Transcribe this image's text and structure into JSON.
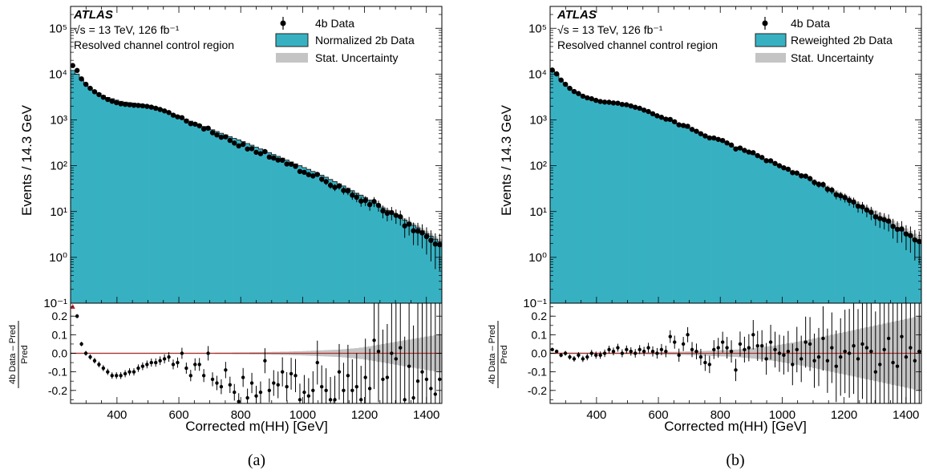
{
  "panels": [
    {
      "atlas_label": "ATLAS",
      "energy_label": "√s = 13 TeV, 126 fb⁻¹",
      "region_label": "Resolved channel control region",
      "legend": [
        {
          "marker": "point",
          "label": "4b Data"
        },
        {
          "marker": "fill",
          "label": "Normalized 2b Data"
        },
        {
          "marker": "band",
          "label": "Stat. Uncertainty"
        }
      ],
      "caption": "(a)"
    },
    {
      "atlas_label": "ATLAS",
      "energy_label": "√s = 13 TeV, 126 fb⁻¹",
      "region_label": "Resolved channel control region",
      "legend": [
        {
          "marker": "point",
          "label": "4b Data"
        },
        {
          "marker": "fill",
          "label": "Reweighted 2b Data"
        },
        {
          "marker": "band",
          "label": "Stat. Uncertainty"
        }
      ],
      "caption": "(b)"
    }
  ],
  "colors": {
    "prediction_fill": "#37b1c2",
    "prediction_edge": "#222222",
    "uncertainty": "#c4c4c4",
    "reference_line": "#b0302c",
    "offscale_marker": "#c1272d",
    "data": "#000000"
  },
  "chart_data": [
    {
      "type": "histogram",
      "title": "",
      "xlabel": "Corrected m(HH) [GeV]",
      "ylabel": "Events / 14.3 GeV",
      "ratio_ylabel": "4b Data – Pred / Pred",
      "xlim": [
        250,
        1450
      ],
      "ylim": [
        0.1,
        300000
      ],
      "yscale": "log",
      "ratio_ylim": [
        -0.27,
        0.27
      ],
      "x_ticks": [
        400,
        600,
        800,
        1000,
        1200,
        1400
      ],
      "y_ticks": [
        {
          "value": 0.1,
          "label": "10⁻¹"
        },
        {
          "value": 1,
          "label": "10⁰"
        },
        {
          "value": 10,
          "label": "10¹"
        },
        {
          "value": 100,
          "label": "10²"
        },
        {
          "value": 1000,
          "label": "10³"
        },
        {
          "value": 10000,
          "label": "10⁴"
        },
        {
          "value": 100000,
          "label": "10⁵"
        }
      ],
      "ratio_ticks": [
        -0.2,
        -0.1,
        0.0,
        0.1,
        0.2
      ],
      "bin_width_gev": 14.3,
      "prediction": [
        12000,
        10000,
        7500,
        6000,
        5000,
        4300,
        3800,
        3400,
        3100,
        2900,
        2700,
        2550,
        2450,
        2380,
        2320,
        2250,
        2180,
        2100,
        2000,
        1890,
        1760,
        1620,
        1480,
        1350,
        1230,
        1120,
        1030,
        940,
        860,
        790,
        720,
        660,
        610,
        560,
        510,
        470,
        430,
        395,
        365,
        335,
        305,
        280,
        255,
        232,
        212,
        193,
        175,
        160,
        146,
        133,
        121,
        110,
        100,
        91,
        83,
        75,
        68,
        62,
        56,
        50,
        45,
        40,
        36,
        32,
        28.5,
        25,
        22.5,
        20,
        17.5,
        15.5,
        13.5,
        12,
        10.5,
        9.5,
        8.5,
        7.5,
        6.5,
        5.7,
        5,
        4.4,
        3.8,
        3.3,
        2.9,
        2.5,
        2.2
      ],
      "ratio": [
        0.28,
        0.2,
        0.05,
        0.0,
        -0.02,
        -0.04,
        -0.06,
        -0.08,
        -0.1,
        -0.12,
        -0.12,
        -0.12,
        -0.11,
        -0.1,
        -0.1,
        -0.08,
        -0.07,
        -0.06,
        -0.05,
        -0.05,
        -0.04,
        -0.03,
        -0.02,
        -0.06,
        -0.05,
        0.0,
        -0.08,
        -0.12,
        -0.06,
        -0.06,
        -0.12,
        0.0,
        -0.14,
        -0.16,
        -0.18,
        -0.09,
        -0.17,
        -0.21,
        -0.26,
        -0.13,
        -0.24,
        -0.16,
        -0.23,
        -0.21,
        -0.04,
        -0.2,
        -0.16,
        -0.17,
        -0.1,
        -0.18,
        -0.11,
        -0.12,
        -0.25,
        -0.21,
        -0.23,
        -0.2,
        -0.05,
        -0.18,
        -0.2,
        -0.25,
        -0.25,
        -0.1,
        -0.2,
        -0.12,
        -0.2,
        -0.18,
        -0.25,
        -0.13,
        -0.19,
        0.07,
        0.01,
        -0.14,
        -0.13,
        0.0,
        -0.03,
        0.03,
        -0.25,
        -0.07,
        -0.24,
        -0.15,
        -0.1,
        -0.14,
        -0.19,
        -0.22,
        -0.14
      ],
      "uncertainty": [
        0.003,
        0.003,
        0.003,
        0.003,
        0.003,
        0.003,
        0.003,
        0.003,
        0.003,
        0.003,
        0.003,
        0.003,
        0.003,
        0.003,
        0.003,
        0.003,
        0.003,
        0.003,
        0.003,
        0.003,
        0.003,
        0.003,
        0.003,
        0.003,
        0.003,
        0.003,
        0.003,
        0.003,
        0.003,
        0.003,
        0.003,
        0.003,
        0.003,
        0.004,
        0.004,
        0.004,
        0.004,
        0.005,
        0.005,
        0.005,
        0.005,
        0.006,
        0.006,
        0.006,
        0.007,
        0.007,
        0.008,
        0.008,
        0.009,
        0.009,
        0.01,
        0.011,
        0.011,
        0.012,
        0.013,
        0.014,
        0.015,
        0.016,
        0.017,
        0.018,
        0.019,
        0.02,
        0.022,
        0.024,
        0.026,
        0.028,
        0.031,
        0.034,
        0.038,
        0.042,
        0.046,
        0.05,
        0.054,
        0.058,
        0.062,
        0.066,
        0.07,
        0.074,
        0.078,
        0.082,
        0.086,
        0.09,
        0.094,
        0.098,
        0.1
      ]
    },
    {
      "type": "histogram",
      "title": "",
      "xlabel": "Corrected m(HH) [GeV]",
      "ylabel": "Events / 14.3 GeV",
      "ratio_ylabel": "4b Data – Pred / Pred",
      "xlim": [
        250,
        1450
      ],
      "ylim": [
        0.1,
        300000
      ],
      "yscale": "log",
      "ratio_ylim": [
        -0.27,
        0.27
      ],
      "x_ticks": [
        400,
        600,
        800,
        1000,
        1200,
        1400
      ],
      "y_ticks": [
        {
          "value": 0.1,
          "label": "10⁻¹"
        },
        {
          "value": 1,
          "label": "10⁰"
        },
        {
          "value": 10,
          "label": "10¹"
        },
        {
          "value": 100,
          "label": "10²"
        },
        {
          "value": 1000,
          "label": "10³"
        },
        {
          "value": 10000,
          "label": "10⁴"
        },
        {
          "value": 100000,
          "label": "10⁵"
        }
      ],
      "ratio_ticks": [
        -0.2,
        -0.1,
        0.0,
        0.1,
        0.2
      ],
      "bin_width_gev": 14.3,
      "prediction": [
        12000,
        10000,
        7500,
        6000,
        5000,
        4300,
        3800,
        3400,
        3100,
        2900,
        2700,
        2550,
        2450,
        2380,
        2320,
        2250,
        2180,
        2100,
        2000,
        1890,
        1760,
        1620,
        1480,
        1350,
        1230,
        1120,
        1030,
        940,
        860,
        790,
        720,
        660,
        610,
        560,
        510,
        470,
        430,
        395,
        365,
        335,
        305,
        280,
        255,
        232,
        212,
        193,
        175,
        160,
        146,
        133,
        121,
        110,
        100,
        91,
        83,
        75,
        68,
        62,
        56,
        50,
        45,
        40,
        36,
        32,
        28.5,
        25,
        22.5,
        20,
        17.5,
        15.5,
        13.5,
        12,
        10.5,
        9.5,
        8.5,
        7.5,
        6.5,
        5.7,
        5,
        4.4,
        3.8,
        3.3,
        2.9,
        2.5,
        2.2
      ],
      "ratio": [
        0.02,
        0.01,
        -0.01,
        0.0,
        -0.02,
        -0.03,
        -0.01,
        -0.03,
        -0.02,
        0.0,
        -0.01,
        -0.01,
        0.0,
        0.02,
        0.01,
        0.03,
        0.0,
        0.02,
        0.01,
        0.0,
        0.02,
        0.01,
        0.03,
        0.01,
        0.0,
        0.02,
        0.01,
        0.09,
        0.06,
        -0.01,
        0.05,
        0.1,
        0.02,
        0.01,
        -0.02,
        -0.05,
        -0.06,
        0.02,
        0.03,
        0.06,
        0.03,
        0.01,
        -0.09,
        0.05,
        0.02,
        0.03,
        0.1,
        0.04,
        0.04,
        -0.03,
        0.06,
        0.02,
        0.0,
        -0.01,
        0.01,
        -0.06,
        0.02,
        -0.03,
        0.06,
        0.05,
        -0.04,
        -0.02,
        0.08,
        -0.04,
        0.03,
        -0.07,
        -0.02,
        0.01,
        0.0,
        0.04,
        -0.03,
        0.05,
        0.03,
        0.01,
        -0.1,
        -0.06,
        0.02,
        0.08,
        -0.05,
        -0.07,
        0.09,
        -0.02,
        0.03,
        -0.04,
        0.01
      ],
      "uncertainty": [
        0.004,
        0.004,
        0.004,
        0.004,
        0.004,
        0.004,
        0.004,
        0.004,
        0.004,
        0.004,
        0.004,
        0.004,
        0.004,
        0.004,
        0.004,
        0.004,
        0.004,
        0.005,
        0.005,
        0.005,
        0.005,
        0.005,
        0.006,
        0.006,
        0.006,
        0.007,
        0.007,
        0.008,
        0.008,
        0.009,
        0.009,
        0.01,
        0.011,
        0.011,
        0.012,
        0.013,
        0.014,
        0.015,
        0.016,
        0.017,
        0.018,
        0.019,
        0.02,
        0.022,
        0.024,
        0.026,
        0.028,
        0.03,
        0.033,
        0.036,
        0.039,
        0.042,
        0.046,
        0.05,
        0.054,
        0.058,
        0.062,
        0.066,
        0.07,
        0.075,
        0.08,
        0.085,
        0.09,
        0.095,
        0.1,
        0.105,
        0.11,
        0.115,
        0.12,
        0.125,
        0.13,
        0.135,
        0.14,
        0.145,
        0.15,
        0.155,
        0.16,
        0.165,
        0.17,
        0.175,
        0.18,
        0.185,
        0.19,
        0.195,
        0.2
      ]
    }
  ]
}
